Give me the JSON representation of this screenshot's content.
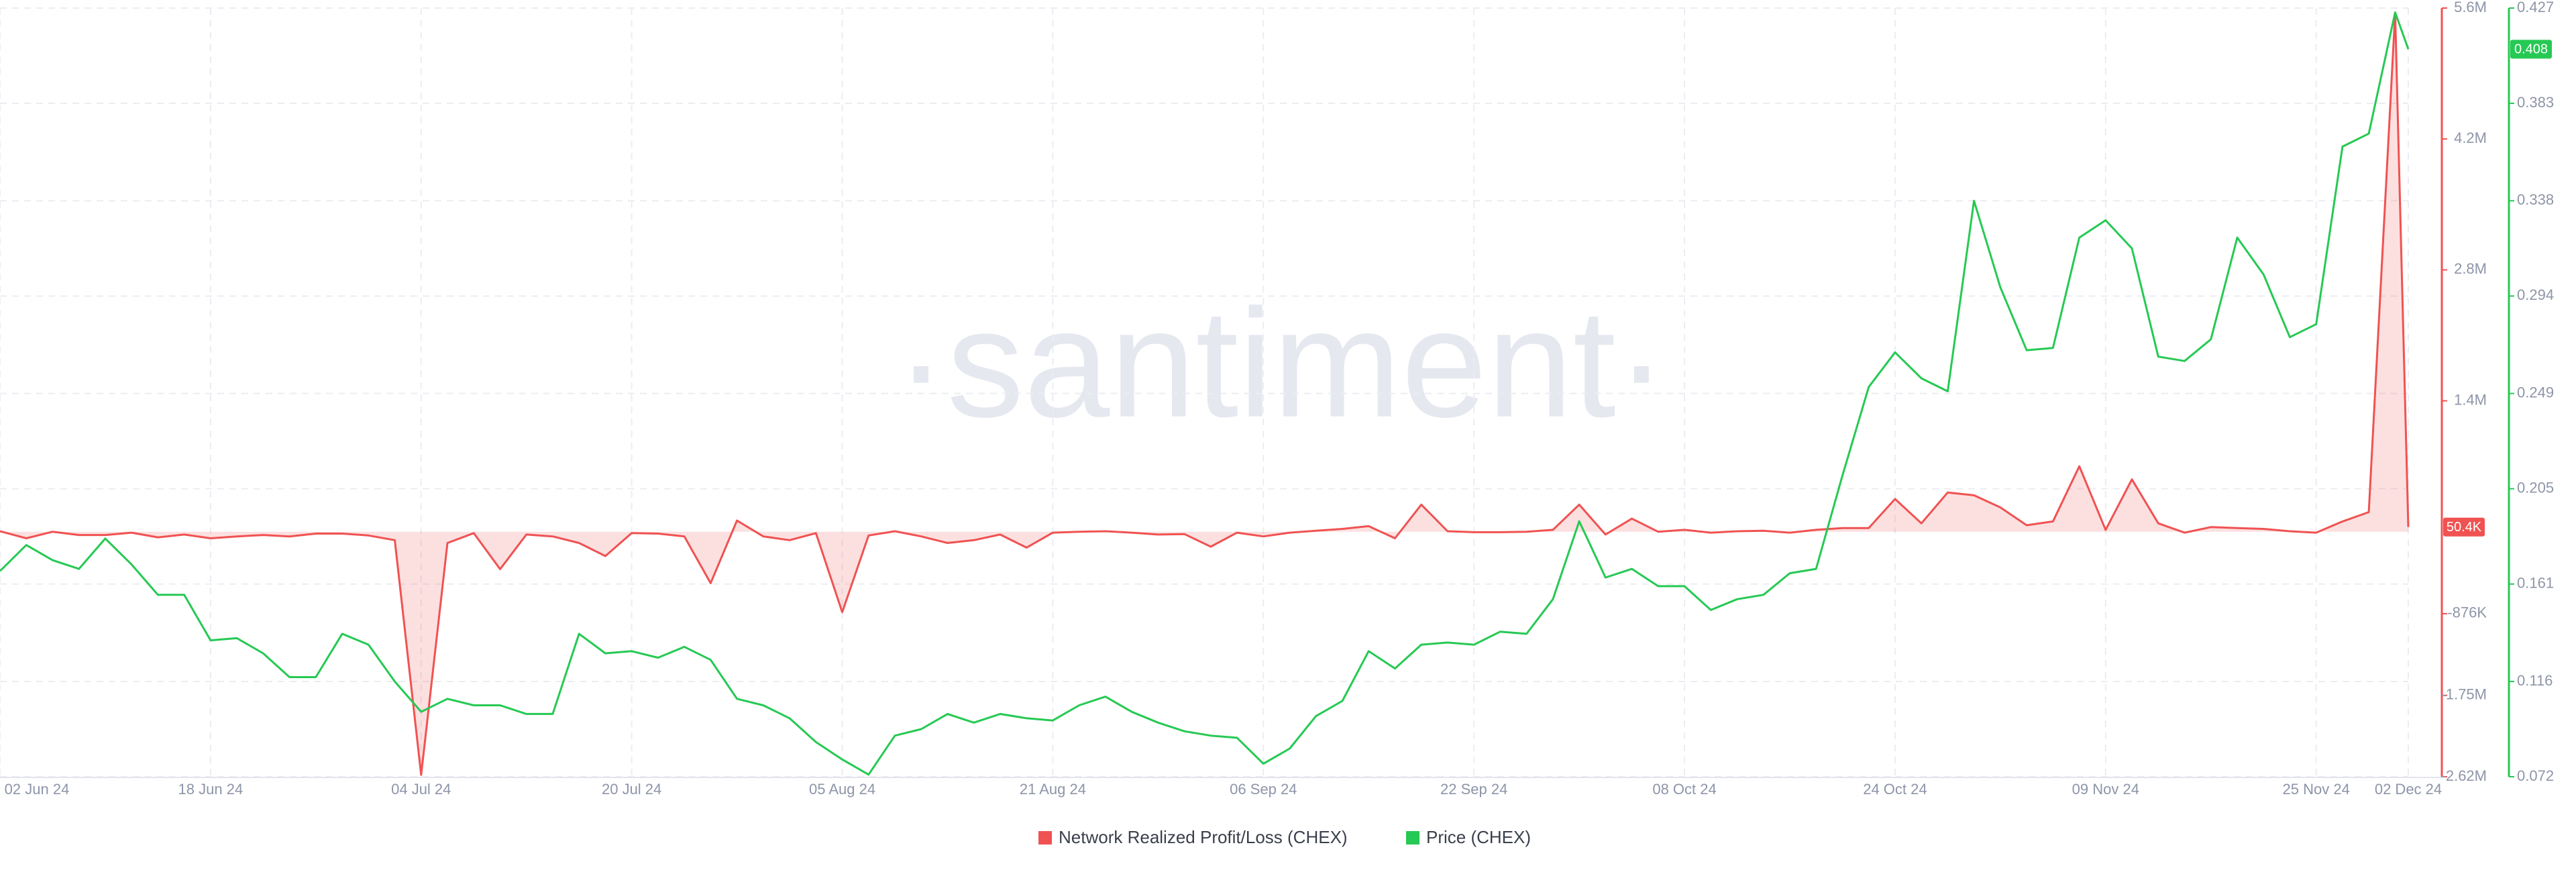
{
  "chart_data": {
    "type": "line",
    "watermark": "·santiment·",
    "x": [
      "2024-06-02",
      "2024-06-04",
      "2024-06-06",
      "2024-06-08",
      "2024-06-10",
      "2024-06-12",
      "2024-06-14",
      "2024-06-16",
      "2024-06-18",
      "2024-06-20",
      "2024-06-22",
      "2024-06-24",
      "2024-06-26",
      "2024-06-28",
      "2024-06-30",
      "2024-07-02",
      "2024-07-04",
      "2024-07-06",
      "2024-07-08",
      "2024-07-10",
      "2024-07-12",
      "2024-07-14",
      "2024-07-16",
      "2024-07-18",
      "2024-07-20",
      "2024-07-22",
      "2024-07-24",
      "2024-07-26",
      "2024-07-28",
      "2024-07-30",
      "2024-08-01",
      "2024-08-03",
      "2024-08-05",
      "2024-08-07",
      "2024-08-09",
      "2024-08-11",
      "2024-08-13",
      "2024-08-15",
      "2024-08-17",
      "2024-08-19",
      "2024-08-21",
      "2024-08-23",
      "2024-08-25",
      "2024-08-27",
      "2024-08-29",
      "2024-08-31",
      "2024-09-02",
      "2024-09-04",
      "2024-09-06",
      "2024-09-08",
      "2024-09-10",
      "2024-09-12",
      "2024-09-14",
      "2024-09-16",
      "2024-09-18",
      "2024-09-20",
      "2024-09-22",
      "2024-09-24",
      "2024-09-26",
      "2024-09-28",
      "2024-09-30",
      "2024-10-02",
      "2024-10-04",
      "2024-10-06",
      "2024-10-08",
      "2024-10-10",
      "2024-10-12",
      "2024-10-14",
      "2024-10-16",
      "2024-10-18",
      "2024-10-20",
      "2024-10-22",
      "2024-10-24",
      "2024-10-26",
      "2024-10-28",
      "2024-10-30",
      "2024-11-01",
      "2024-11-03",
      "2024-11-05",
      "2024-11-07",
      "2024-11-09",
      "2024-11-11",
      "2024-11-13",
      "2024-11-15",
      "2024-11-17",
      "2024-11-19",
      "2024-11-21",
      "2024-11-23",
      "2024-11-25",
      "2024-11-27",
      "2024-11-29",
      "2024-12-01",
      "2024-12-02"
    ],
    "xlim": [
      "2024-06-02",
      "2024-12-02"
    ],
    "xticks": [
      {
        "value": "2024-06-02",
        "label": "02 Jun 24"
      },
      {
        "value": "2024-06-18",
        "label": "18 Jun 24"
      },
      {
        "value": "2024-07-04",
        "label": "04 Jul 24"
      },
      {
        "value": "2024-07-20",
        "label": "20 Jul 24"
      },
      {
        "value": "2024-08-05",
        "label": "05 Aug 24"
      },
      {
        "value": "2024-08-21",
        "label": "21 Aug 24"
      },
      {
        "value": "2024-09-06",
        "label": "06 Sep 24"
      },
      {
        "value": "2024-09-22",
        "label": "22 Sep 24"
      },
      {
        "value": "2024-10-08",
        "label": "08 Oct 24"
      },
      {
        "value": "2024-10-24",
        "label": "24 Oct 24"
      },
      {
        "value": "2024-11-09",
        "label": "09 Nov 24"
      },
      {
        "value": "2024-11-25",
        "label": "25 Nov 24"
      },
      {
        "value": "2024-12-02",
        "label": "02 Dec 24"
      }
    ],
    "ylim": [
      -2620000,
      5600000
    ],
    "yticks": [
      {
        "value": 5600000,
        "label": "5.6M"
      },
      {
        "value": 4200000,
        "label": "4.2M"
      },
      {
        "value": 2800000,
        "label": "2.8M"
      },
      {
        "value": 1400000,
        "label": "1.4M"
      },
      {
        "value": -876000,
        "label": "-876K"
      },
      {
        "value": -1750000,
        "label": "-1.75M"
      },
      {
        "value": -2620000,
        "label": "-2.62M"
      }
    ],
    "y2lim": [
      0.072,
      0.427
    ],
    "y2ticks": [
      0.427,
      0.383,
      0.338,
      0.294,
      0.249,
      0.205,
      0.161,
      0.116,
      0.072
    ],
    "grid": true,
    "series": [
      {
        "name": "Network Realized Profit/Loss (CHEX)",
        "color": "#f05252",
        "area": true,
        "last_label": {
          "value": 50400,
          "label": "50.4K"
        },
        "values": [
          5000,
          -70000,
          0,
          -35000,
          -35000,
          -10000,
          -60000,
          -30000,
          -70000,
          -50000,
          -35000,
          -50000,
          -20000,
          -20000,
          -40000,
          -90000,
          -2600000,
          -120000,
          -15000,
          -400000,
          -30000,
          -50000,
          -120000,
          -260000,
          -15000,
          -20000,
          -50000,
          -550000,
          120000,
          -50000,
          -90000,
          -15000,
          -860000,
          -40000,
          5000,
          -50000,
          -120000,
          -90000,
          -30000,
          -170000,
          -10000,
          0,
          5000,
          -10000,
          -30000,
          -25000,
          -160000,
          -10000,
          -50000,
          -10000,
          10000,
          30000,
          60000,
          -70000,
          290000,
          5000,
          -5000,
          -5000,
          0,
          20000,
          290000,
          -30000,
          140000,
          0,
          20000,
          -10000,
          5000,
          10000,
          -10000,
          20000,
          40000,
          40000,
          350000,
          90000,
          420000,
          390000,
          260000,
          70000,
          110000,
          700000,
          20000,
          560000,
          90000,
          -10000,
          50000,
          40000,
          30000,
          5000,
          -10000,
          110000,
          210000,
          5550000,
          50400
        ]
      },
      {
        "name": "Price (CHEX)",
        "color": "#26c953",
        "axis": "y2",
        "last_label": {
          "value": 0.408,
          "label": "0.408"
        },
        "values": [
          0.167,
          0.179,
          0.172,
          0.168,
          0.182,
          0.17,
          0.156,
          0.156,
          0.135,
          0.136,
          0.129,
          0.118,
          0.118,
          0.138,
          0.133,
          0.116,
          0.102,
          0.108,
          0.105,
          0.105,
          0.101,
          0.101,
          0.138,
          0.129,
          0.13,
          0.127,
          0.132,
          0.126,
          0.108,
          0.105,
          0.099,
          0.088,
          0.08,
          0.073,
          0.091,
          0.094,
          0.101,
          0.097,
          0.101,
          0.099,
          0.098,
          0.105,
          0.109,
          0.102,
          0.097,
          0.093,
          0.091,
          0.09,
          0.078,
          0.085,
          0.1,
          0.107,
          0.13,
          0.122,
          0.133,
          0.134,
          0.133,
          0.139,
          0.138,
          0.154,
          0.19,
          0.164,
          0.168,
          0.16,
          0.16,
          0.149,
          0.154,
          0.156,
          0.166,
          0.168,
          0.211,
          0.252,
          0.268,
          0.256,
          0.25,
          0.338,
          0.298,
          0.269,
          0.27,
          0.321,
          0.329,
          0.316,
          0.266,
          0.264,
          0.274,
          0.321,
          0.304,
          0.275,
          0.281,
          0.363,
          0.369,
          0.425,
          0.408
        ]
      }
    ]
  }
}
